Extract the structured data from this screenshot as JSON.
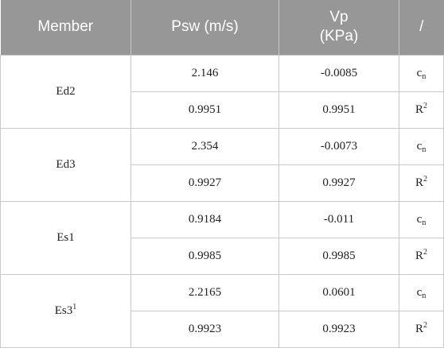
{
  "header": {
    "member": "Member",
    "psw": "Psw (m/s)",
    "vp_line1": "Vp",
    "vp_line2": "(KPa)",
    "slash": "/"
  },
  "rows": [
    {
      "member": "Ed2",
      "member_sup": "",
      "cn": {
        "psw": "2.146",
        "vp": "-0.0085",
        "sym_base": "c",
        "sym_sub": "n"
      },
      "r2": {
        "psw": "0.9951",
        "vp": "0.9951",
        "sym_base": "R",
        "sym_sup": "2"
      }
    },
    {
      "member": "Ed3",
      "member_sup": "",
      "cn": {
        "psw": "2.354",
        "vp": "-0.0073",
        "sym_base": "c",
        "sym_sub": "n"
      },
      "r2": {
        "psw": "0.9927",
        "vp": "0.9927",
        "sym_base": "R",
        "sym_sup": "2"
      }
    },
    {
      "member": "Es1",
      "member_sup": "",
      "cn": {
        "psw": "0.9184",
        "vp": "-0.011",
        "sym_base": "c",
        "sym_sub": "n"
      },
      "r2": {
        "psw": "0.9985",
        "vp": "0.9985",
        "sym_base": "R",
        "sym_sup": "2"
      }
    },
    {
      "member": "Es3",
      "member_sup": "1",
      "cn": {
        "psw": "2.2165",
        "vp": "0.0601",
        "sym_base": "c",
        "sym_sub": "n"
      },
      "r2": {
        "psw": "0.9923",
        "vp": "0.9923",
        "sym_base": "R",
        "sym_sup": "2"
      }
    }
  ]
}
